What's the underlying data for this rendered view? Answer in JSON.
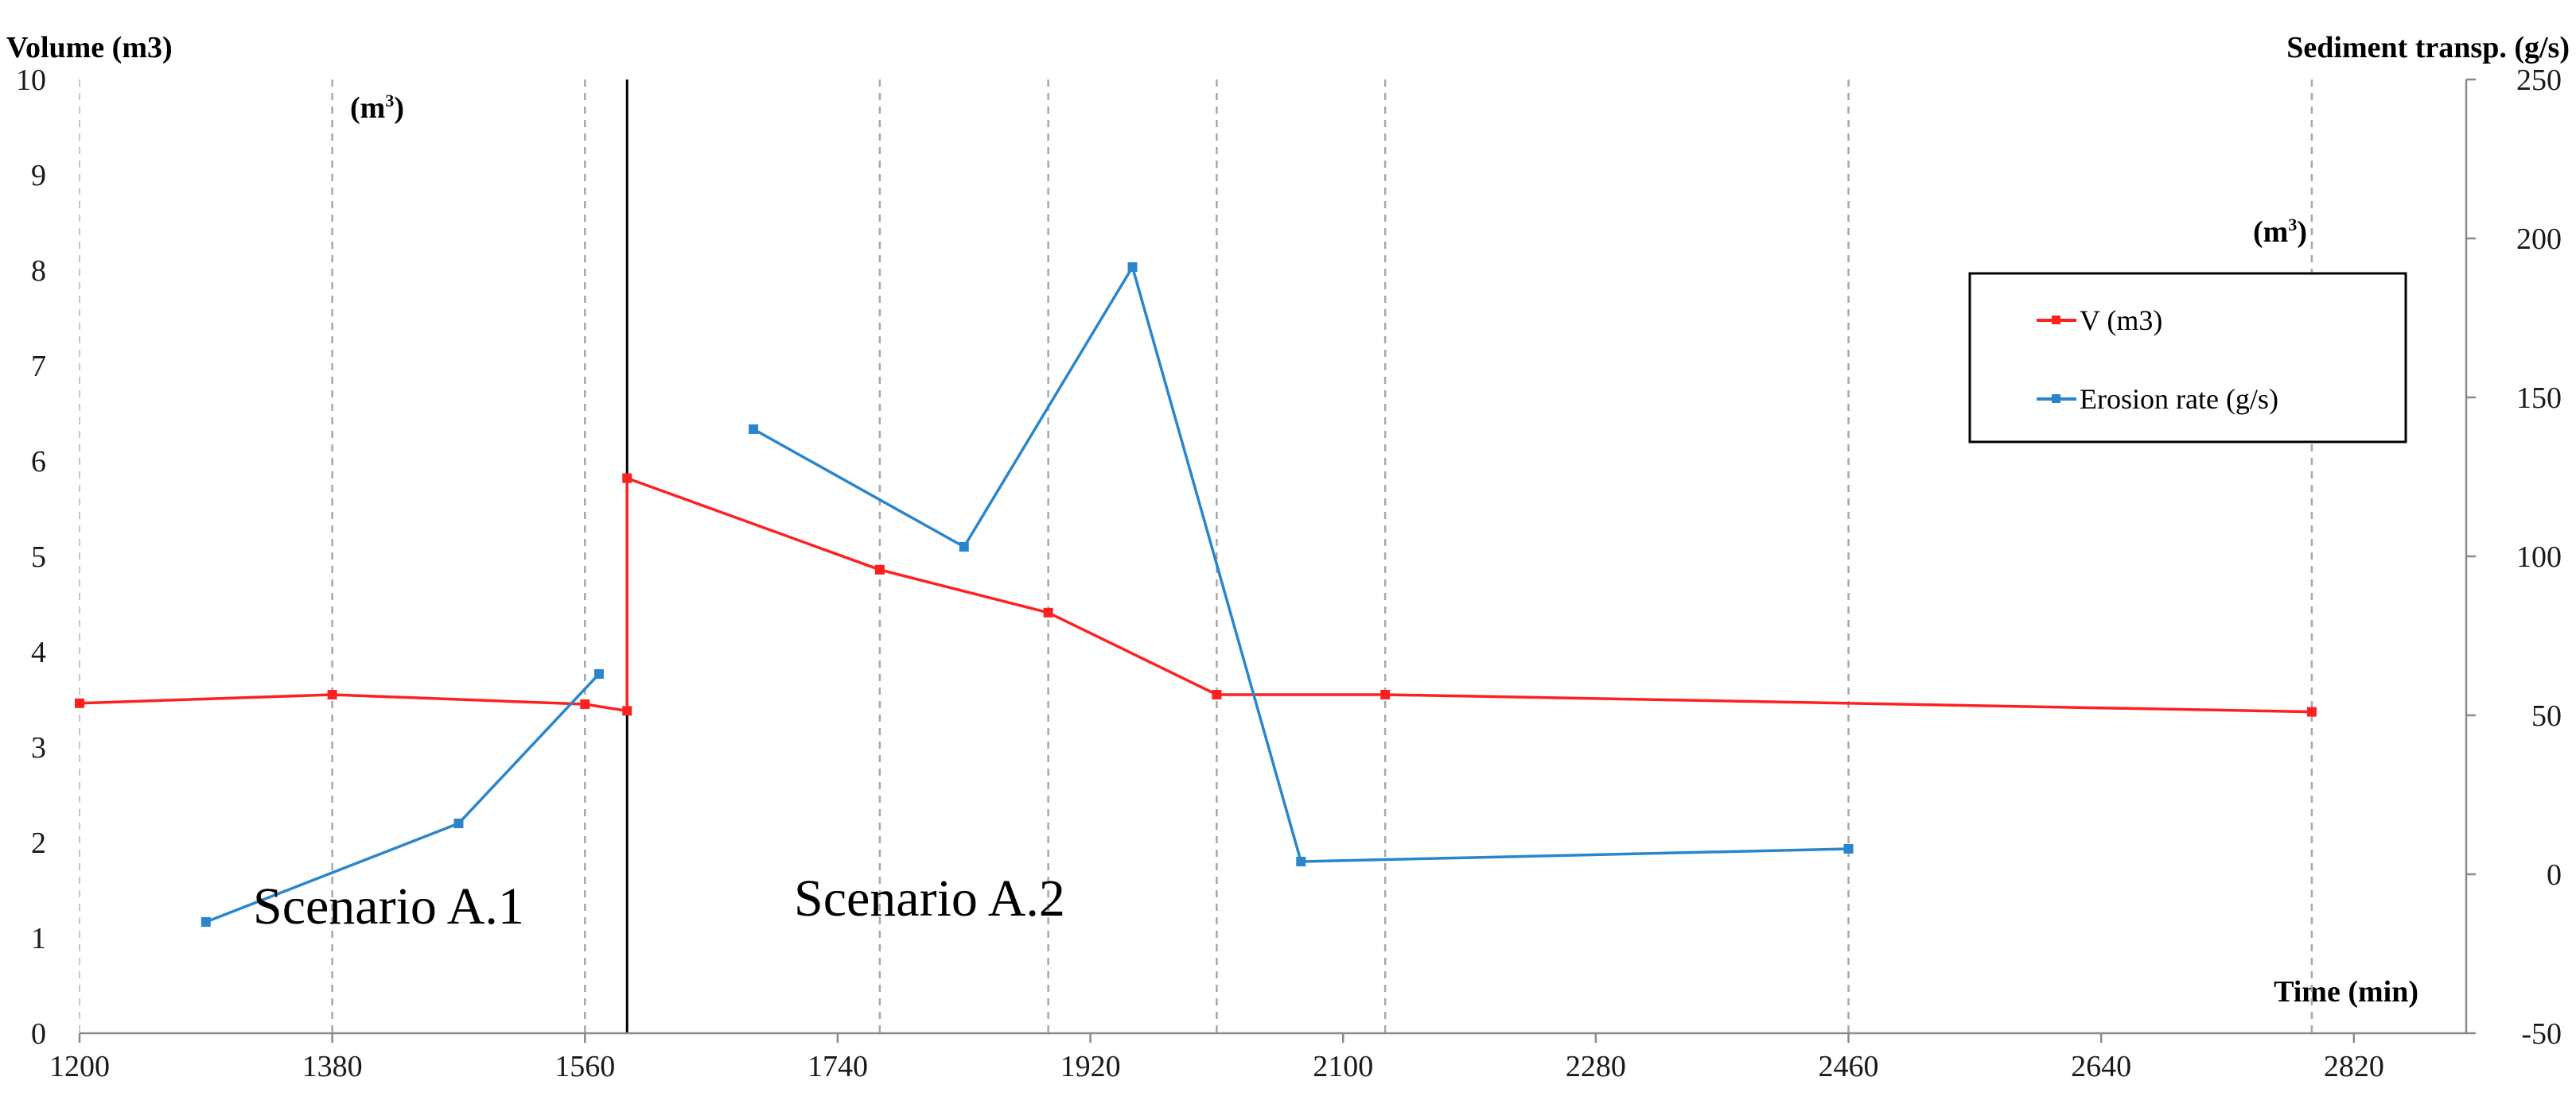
{
  "chart_data": {
    "type": "line",
    "title": "",
    "left_axis": {
      "title": "Volume (m3)",
      "min": 0,
      "max": 10,
      "ticks": [
        "0",
        "1",
        "2",
        "3",
        "4",
        "5",
        "6",
        "7",
        "8",
        "9",
        "10"
      ]
    },
    "right_axis": {
      "title": "Sediment transp. (g/s)",
      "min": -50,
      "max": 250,
      "ticks": [
        "-50",
        "0",
        "50",
        "100",
        "150",
        "200",
        "250"
      ]
    },
    "x_axis": {
      "title": "Time (min)",
      "min": 1200,
      "max": 2900,
      "ticks": [
        "1200",
        "1380",
        "1560",
        "1740",
        "1920",
        "2100",
        "2280",
        "2460",
        "2640",
        "2820"
      ]
    },
    "unit_notes": [
      {
        "base": "(m",
        "sup": "3",
        "close": ")"
      },
      {
        "base": "(m",
        "sup": "3",
        "close": ")"
      }
    ],
    "dashed_gridlines_x": [
      1380,
      1560,
      1770,
      1890,
      2010,
      2130,
      2460,
      2790
    ],
    "scenario_divider_x": 1590,
    "scenarios": [
      {
        "label": "Scenario A.1"
      },
      {
        "label": "Scenario A.2"
      }
    ],
    "series": [
      {
        "name": "V (m3)",
        "axis": "left",
        "color": "#ff2020",
        "points": [
          [
            1200,
            3.46
          ],
          [
            1380,
            3.55
          ],
          [
            1560,
            3.45
          ],
          [
            1590,
            3.38
          ],
          [
            1590,
            5.82
          ],
          [
            1770,
            4.86
          ],
          [
            1890,
            4.41
          ],
          [
            2010,
            3.55
          ],
          [
            2130,
            3.55
          ],
          [
            2790,
            3.37
          ]
        ]
      },
      {
        "name": "Erosion rate (g/s)",
        "axis": "right",
        "color": "#2a86cc",
        "segments": [
          [
            [
              1290,
              -15
            ],
            [
              1470,
              16
            ],
            [
              1570,
              63
            ]
          ],
          [
            [
              1680,
              140
            ],
            [
              1830,
              103
            ],
            [
              1950,
              191
            ],
            [
              2070,
              4
            ],
            [
              2460,
              8
            ]
          ]
        ]
      }
    ],
    "legend": {
      "position": "right",
      "entries": [
        "V (m3)",
        "Erosion rate (g/s)"
      ]
    }
  }
}
